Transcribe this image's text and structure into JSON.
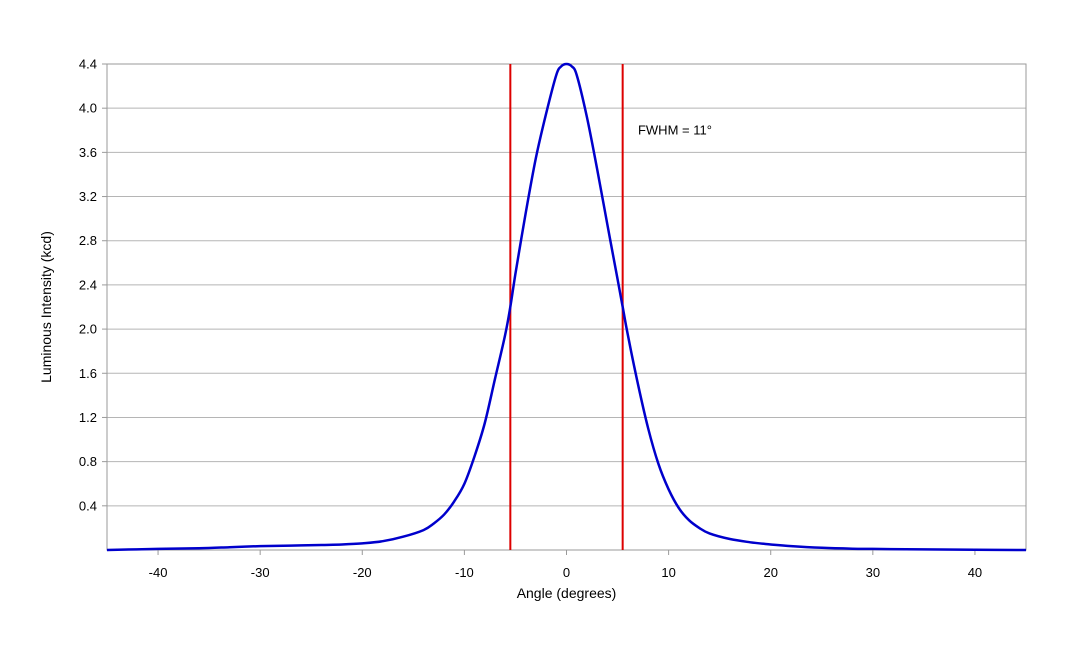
{
  "chart_data": {
    "type": "line",
    "title": "",
    "xlabel": "Angle (degrees)",
    "ylabel": "Luminous Intensity (kcd)",
    "xlim": [
      -45,
      45
    ],
    "ylim": [
      0,
      4.4
    ],
    "xticks": [
      -40,
      -30,
      -20,
      -10,
      0,
      10,
      20,
      30,
      40
    ],
    "xtick_labels": [
      "-40",
      "-30",
      "-20",
      "-10",
      "0",
      "10",
      "20",
      "30",
      "40"
    ],
    "yticks": [
      0.4,
      0.8,
      1.2,
      1.6,
      2.0,
      2.4,
      2.8,
      3.2,
      3.6,
      4.0,
      4.4
    ],
    "ytick_labels": [
      "0.4",
      "0.8",
      "1.2",
      "1.6",
      "2.0",
      "2.4",
      "2.8",
      "3.2",
      "3.6",
      "4.0",
      "4.4"
    ],
    "grid": true,
    "legend": "none",
    "series": [
      {
        "color": "#0000cc",
        "x": [
          -45,
          -40,
          -36,
          -33,
          -30,
          -27,
          -24,
          -22,
          -20,
          -18,
          -16,
          -14,
          -13,
          -12,
          -11,
          -10,
          -9,
          -8,
          -7,
          -6,
          -5.5,
          -5,
          -4,
          -3,
          -2,
          -1,
          -0.5,
          0,
          0.5,
          1,
          2,
          3,
          4,
          5,
          5.5,
          6,
          7,
          8,
          9,
          10,
          11,
          12,
          13,
          14,
          16,
          18,
          20,
          22,
          25,
          28,
          30,
          35,
          40,
          45
        ],
        "y": [
          0.0,
          0.01,
          0.015,
          0.025,
          0.035,
          0.04,
          0.045,
          0.05,
          0.06,
          0.08,
          0.12,
          0.18,
          0.24,
          0.32,
          0.44,
          0.6,
          0.85,
          1.15,
          1.55,
          1.95,
          2.2,
          2.5,
          3.05,
          3.55,
          3.95,
          4.3,
          4.38,
          4.4,
          4.38,
          4.3,
          3.92,
          3.45,
          2.95,
          2.45,
          2.2,
          1.95,
          1.5,
          1.1,
          0.78,
          0.55,
          0.38,
          0.27,
          0.2,
          0.15,
          0.1,
          0.07,
          0.05,
          0.035,
          0.02,
          0.012,
          0.01,
          0.005,
          0.002,
          0.0
        ]
      }
    ],
    "vertical_lines": [
      {
        "x": -5.5,
        "color": "#dd0000"
      },
      {
        "x": 5.5,
        "color": "#dd0000"
      }
    ],
    "annotations": [
      {
        "text": "FWHM = 11°",
        "x": 7,
        "y": 3.8
      }
    ]
  }
}
